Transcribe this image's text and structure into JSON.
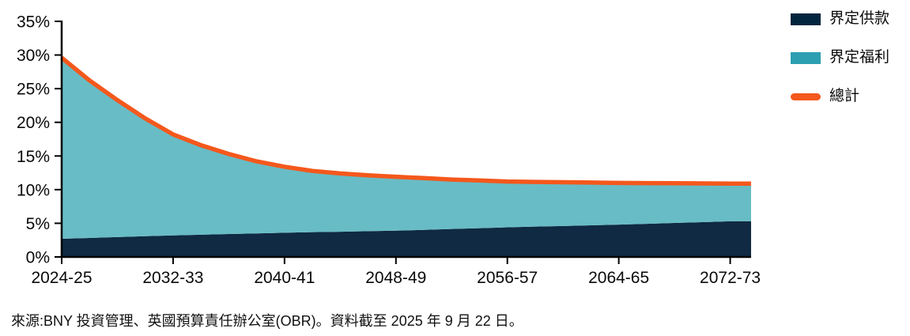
{
  "chart_data": {
    "type": "area",
    "title": "",
    "stacking": "stacked areas (dc bottom, db on top); total line equals dc+db",
    "grid": false,
    "legend_position": "top-right",
    "xlim": [
      2024,
      2073.5
    ],
    "ylim": [
      0,
      35
    ],
    "y_ticks": [
      0,
      5,
      10,
      15,
      20,
      25,
      30,
      35
    ],
    "y_tick_suffix": "%",
    "x_tick_years": [
      2024,
      2032,
      2040,
      2048,
      2056,
      2064,
      2072
    ],
    "x_tick_labels": [
      "2024-25",
      "2032-33",
      "2040-41",
      "2048-49",
      "2056-57",
      "2064-65",
      "2072-73"
    ],
    "x": [
      2024,
      2026,
      2028,
      2030,
      2032,
      2034,
      2036,
      2038,
      2040,
      2042,
      2044,
      2046,
      2048,
      2050,
      2052,
      2054,
      2056,
      2058,
      2060,
      2062,
      2064,
      2066,
      2068,
      2070,
      2072,
      2073.5
    ],
    "series": [
      {
        "name": "界定供款",
        "type": "area",
        "color_fill": "#0F2A42",
        "color_legend": "#03243E",
        "values": [
          2.7,
          2.82,
          2.95,
          3.08,
          3.2,
          3.3,
          3.4,
          3.5,
          3.6,
          3.68,
          3.75,
          3.83,
          3.9,
          4.02,
          4.15,
          4.27,
          4.4,
          4.5,
          4.6,
          4.7,
          4.8,
          4.92,
          5.05,
          5.17,
          5.3,
          5.32
        ]
      },
      {
        "name": "界定福利",
        "type": "area",
        "color_fill": "#68BCC5",
        "color_legend": "#2C9FB1",
        "values": [
          26.9,
          23.4,
          20.35,
          17.5,
          15.0,
          13.3,
          11.9,
          10.7,
          9.8,
          9.1,
          8.65,
          8.3,
          8.0,
          7.7,
          7.35,
          7.1,
          6.8,
          6.65,
          6.5,
          6.35,
          6.2,
          6.05,
          5.9,
          5.75,
          5.6,
          5.58
        ]
      },
      {
        "name": "總計",
        "type": "line",
        "color": "#F4581C",
        "values": [
          29.6,
          26.22,
          23.3,
          20.58,
          18.2,
          16.6,
          15.3,
          14.2,
          13.4,
          12.78,
          12.4,
          12.13,
          11.9,
          11.72,
          11.5,
          11.37,
          11.2,
          11.15,
          11.1,
          11.05,
          11.0,
          10.97,
          10.95,
          10.92,
          10.9,
          10.9
        ]
      }
    ],
    "axis_color": "#000000"
  },
  "source_note": "來源:BNY 投資管理、英國預算責任辦公室(OBR)。資料截至 2025 年 9 月 22 日。"
}
